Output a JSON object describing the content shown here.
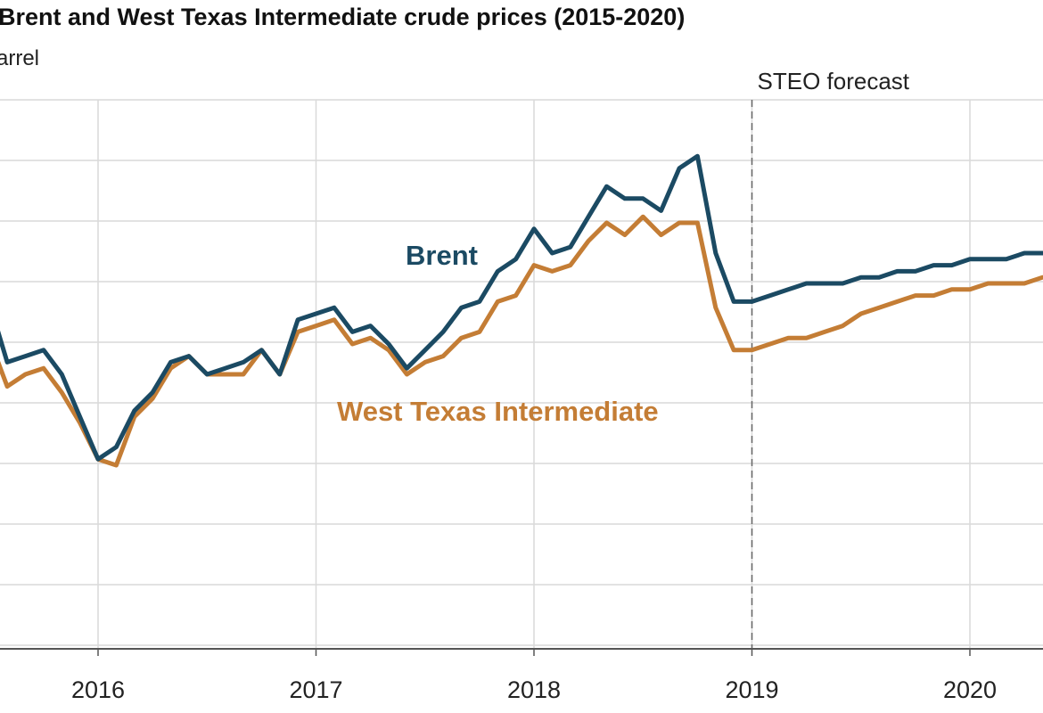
{
  "chart_data": {
    "type": "line",
    "title": "Brent and West Texas Intermediate crude prices (2015-2020)",
    "subtitle": "arrel",
    "xlabel": "",
    "ylabel": "",
    "x_ticks": [
      "2016",
      "2017",
      "2018",
      "2019",
      "2020"
    ],
    "forecast_annotation": "STEO forecast",
    "forecast_start": "2019-01",
    "grid": true,
    "legend": "inline labels",
    "dates": [
      "2015-07",
      "2015-08",
      "2015-09",
      "2015-10",
      "2015-11",
      "2015-12",
      "2016-01",
      "2016-02",
      "2016-03",
      "2016-04",
      "2016-05",
      "2016-06",
      "2016-07",
      "2016-08",
      "2016-09",
      "2016-10",
      "2016-11",
      "2016-12",
      "2017-01",
      "2017-02",
      "2017-03",
      "2017-04",
      "2017-05",
      "2017-06",
      "2017-07",
      "2017-08",
      "2017-09",
      "2017-10",
      "2017-11",
      "2017-12",
      "2018-01",
      "2018-02",
      "2018-03",
      "2018-04",
      "2018-05",
      "2018-06",
      "2018-07",
      "2018-08",
      "2018-09",
      "2018-10",
      "2018-11",
      "2018-12",
      "2019-01",
      "2019-02",
      "2019-03",
      "2019-04",
      "2019-05",
      "2019-06",
      "2019-07",
      "2019-08",
      "2019-09",
      "2019-10",
      "2019-11",
      "2019-12",
      "2020-01",
      "2020-02",
      "2020-03",
      "2020-04",
      "2020-05"
    ],
    "series": [
      {
        "name": "Brent",
        "color": "#1b4a63",
        "values": [
          57,
          47,
          48,
          49,
          45,
          38,
          31,
          33,
          39,
          42,
          47,
          48,
          45,
          46,
          47,
          49,
          45,
          54,
          55,
          56,
          52,
          53,
          50,
          46,
          49,
          52,
          56,
          57,
          62,
          64,
          69,
          65,
          66,
          71,
          76,
          74,
          74,
          72,
          79,
          81,
          65,
          57,
          57,
          58,
          59,
          60,
          60,
          60,
          61,
          61,
          62,
          62,
          63,
          63,
          64,
          64,
          64,
          65,
          65
        ]
      },
      {
        "name": "West Texas Intermediate",
        "color": "#c47d35",
        "values": [
          51,
          43,
          45,
          46,
          42,
          37,
          31,
          30,
          38,
          41,
          46,
          48,
          45,
          45,
          45,
          49,
          45,
          52,
          53,
          54,
          50,
          51,
          49,
          45,
          47,
          48,
          51,
          52,
          57,
          58,
          63,
          62,
          63,
          67,
          70,
          68,
          71,
          68,
          70,
          70,
          56,
          49,
          49,
          50,
          51,
          51,
          52,
          53,
          55,
          56,
          57,
          58,
          58,
          59,
          59,
          60,
          60,
          60,
          61
        ]
      }
    ],
    "label_brent": "Brent",
    "label_wti": "West Texas Intermediate"
  }
}
